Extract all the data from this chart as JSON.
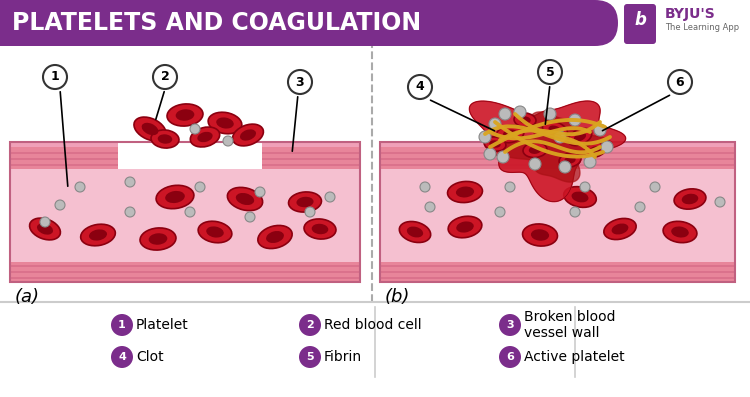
{
  "title": "PLATELETS AND COAGULATION",
  "title_bg_color": "#7B2D8B",
  "title_text_color": "#FFFFFF",
  "legend_items": [
    {
      "num": "1",
      "label": "Platelet"
    },
    {
      "num": "2",
      "label": "Red blood cell"
    },
    {
      "num": "3",
      "label": "Broken blood\nvessel wall"
    },
    {
      "num": "4",
      "label": "Clot"
    },
    {
      "num": "5",
      "label": "Fibrin"
    },
    {
      "num": "6",
      "label": "Active platelet"
    }
  ],
  "purple": "#7B2D8B",
  "label_a": "(a)",
  "label_b": "(b)",
  "bg_color": "#FFFFFF",
  "vessel_pink_light": "#F5C0D0",
  "vessel_pink_mid": "#E8859A",
  "vessel_pink_dark": "#D06080",
  "vessel_stripe": "#C05070",
  "rbc_fill": "#CC1525",
  "rbc_center": "#8B0010",
  "rbc_edge": "#8B0010",
  "platelet_fill": "#BBBBBB",
  "platelet_edge": "#888888",
  "fibrin_color": "#DAA520",
  "clot_fill": "#CC1525"
}
